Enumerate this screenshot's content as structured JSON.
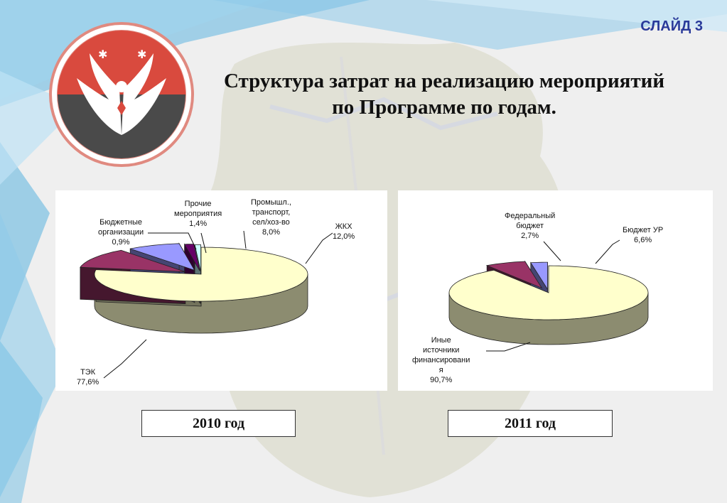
{
  "slide_label": "СЛАЙД 3",
  "title_line1": "Структура затрат на реализацию мероприятий",
  "title_line2": "по Программе по годам.",
  "emblem_icon": "udmurtia-coat-of-arms-icon",
  "colors": {
    "light_yellow": "#FFFFCC",
    "purple": "#993366",
    "periwinkle": "#9999FF",
    "teal": "#669999",
    "light_cyan": "#CCFFFF",
    "magenta": "#660066",
    "slide_label": "#2a3a9a"
  },
  "chart_data": [
    {
      "type": "pie",
      "caption": "2010 год",
      "slices": [
        {
          "label": "ТЭК",
          "value": 77.6,
          "value_label": "77,6%",
          "color": "#FFFFCC"
        },
        {
          "label": "ЖКХ",
          "value": 12.0,
          "value_label": "12,0%",
          "color": "#993366"
        },
        {
          "label": "Промышл., транспорт, сел/хоз-во",
          "value": 8.0,
          "value_label": "8,0%",
          "color": "#9999FF"
        },
        {
          "label": "Прочие мероприятия",
          "value": 1.4,
          "value_label": "1,4%",
          "color": "#660066"
        },
        {
          "label": "Бюджетные организации",
          "value": 0.9,
          "value_label": "0,9%",
          "color": "#CCFFFF"
        }
      ],
      "label_lines": {
        "tek": [
          "ТЭК",
          "77,6%"
        ],
        "zhkh": [
          "ЖКХ",
          "12,0%"
        ],
        "prom": [
          "Промышл.,",
          "транспорт,",
          "сел/хоз-во",
          "8,0%"
        ],
        "proch": [
          "Прочие",
          "мероприятия",
          "1,4%"
        ],
        "budg": [
          "Бюджетные",
          "организации",
          "0,9%"
        ]
      }
    },
    {
      "type": "pie",
      "caption": "2011 год",
      "slices": [
        {
          "label": "Иные источники финансирования",
          "value": 90.7,
          "value_label": "90,7%",
          "color": "#FFFFCC"
        },
        {
          "label": "Бюджет УР",
          "value": 6.6,
          "value_label": "6,6%",
          "color": "#993366"
        },
        {
          "label": "Федеральный бюджет",
          "value": 2.7,
          "value_label": "2,7%",
          "color": "#9999FF"
        }
      ],
      "label_lines": {
        "inye": [
          "Иные",
          "источники",
          "финансировани",
          "я",
          "90,7%"
        ],
        "byur": [
          "Бюджет УР",
          "6,6%"
        ],
        "fed": [
          "Федеральный",
          "бюджет",
          "2,7%"
        ]
      }
    }
  ]
}
